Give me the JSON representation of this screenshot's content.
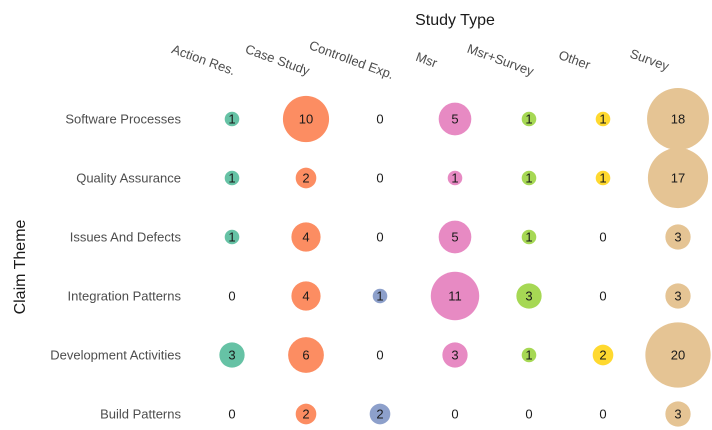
{
  "chart_data": {
    "type": "bubble-matrix",
    "title": "Study Type",
    "ylabel": "Claim Theme",
    "columns": [
      "Action Res.",
      "Case Study",
      "Controlled Exp.",
      "Msr",
      "Msr+Survey",
      "Other",
      "Survey"
    ],
    "rows": [
      "Software Processes",
      "Quality Assurance",
      "Issues And Defects",
      "Integration Patterns",
      "Development Activities",
      "Build Patterns"
    ],
    "values": [
      [
        1,
        10,
        0,
        5,
        1,
        1,
        18
      ],
      [
        1,
        2,
        0,
        1,
        1,
        1,
        17
      ],
      [
        1,
        4,
        0,
        5,
        1,
        0,
        3
      ],
      [
        0,
        4,
        1,
        11,
        3,
        0,
        3
      ],
      [
        3,
        6,
        0,
        3,
        1,
        2,
        20
      ],
      [
        0,
        2,
        2,
        0,
        0,
        0,
        3
      ]
    ],
    "column_colors": [
      "#66c2a5",
      "#fc8d62",
      "#8da0cb",
      "#e78ac3",
      "#a6d854",
      "#ffd92f",
      "#e5c494"
    ],
    "legend": "none",
    "grid": false
  }
}
